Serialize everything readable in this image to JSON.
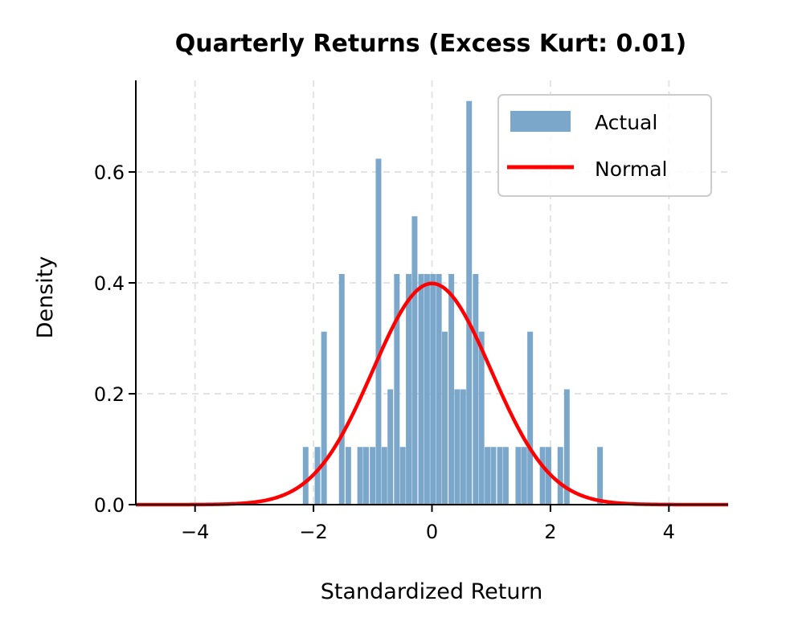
{
  "chart_data": {
    "type": "bar",
    "title": "Quarterly Returns (Excess Kurt: 0.01)",
    "xlabel": "Standardized Return",
    "ylabel": "Density",
    "xlim": [
      -5,
      5
    ],
    "ylim": [
      0,
      0.76
    ],
    "xticks": [
      -4,
      -2,
      0,
      2,
      4
    ],
    "xtick_labels": [
      "−4",
      "−2",
      "0",
      "2",
      "4"
    ],
    "yticks": [
      0.0,
      0.2,
      0.4,
      0.6
    ],
    "ytick_labels": [
      "0.0",
      "0.2",
      "0.4",
      "0.6"
    ],
    "grid": true,
    "legend_position": "upper right",
    "legend": [
      "Actual",
      "Normal"
    ],
    "series": [
      {
        "name": "Actual",
        "kind": "histogram",
        "color": "#7ba7cb",
        "bin_width": 0.1026,
        "bin_starts": [
          -2.18,
          -2.08,
          -1.98,
          -1.87,
          -1.77,
          -1.67,
          -1.57,
          -1.46,
          -1.36,
          -1.26,
          -1.16,
          -1.05,
          -0.95,
          -0.85,
          -0.75,
          -0.64,
          -0.54,
          -0.44,
          -0.34,
          -0.23,
          -0.13,
          -0.03,
          0.07,
          0.17,
          0.28,
          0.38,
          0.48,
          0.58,
          0.69,
          0.79,
          0.89,
          0.99,
          1.1,
          1.2,
          1.3,
          1.41,
          1.51,
          1.61,
          1.71,
          1.82,
          1.92,
          2.02,
          2.12,
          2.23,
          2.33,
          2.43,
          2.53,
          2.64,
          2.74,
          2.79
        ],
        "values": [
          0.104,
          0,
          0.104,
          0.312,
          0,
          0,
          0.416,
          0.104,
          0,
          0.104,
          0.104,
          0.104,
          0.624,
          0.104,
          0.208,
          0.416,
          0.104,
          0.416,
          0.52,
          0.416,
          0.416,
          0.416,
          0.416,
          0.312,
          0.416,
          0.208,
          0.208,
          0.728,
          0.416,
          0.312,
          0.104,
          0.104,
          0.104,
          0.104,
          0,
          0.104,
          0.104,
          0.312,
          0,
          0.104,
          0.104,
          0,
          0.104,
          0.208,
          0,
          0,
          0,
          0,
          0,
          0.104
        ]
      },
      {
        "name": "Normal",
        "kind": "line",
        "color": "#ff0000",
        "description": "Standard normal PDF, mean 0, std 1",
        "x": [
          -5,
          -4,
          -3,
          -2.5,
          -2,
          -1.5,
          -1,
          -0.5,
          0,
          0.5,
          1,
          1.5,
          2,
          2.5,
          3,
          4,
          5
        ],
        "values": [
          1.5e-06,
          0.0001,
          0.0044,
          0.0175,
          0.054,
          0.1295,
          0.242,
          0.3521,
          0.3989,
          0.3521,
          0.242,
          0.1295,
          0.054,
          0.0175,
          0.0044,
          0.0001,
          1.5e-06
        ]
      }
    ]
  }
}
